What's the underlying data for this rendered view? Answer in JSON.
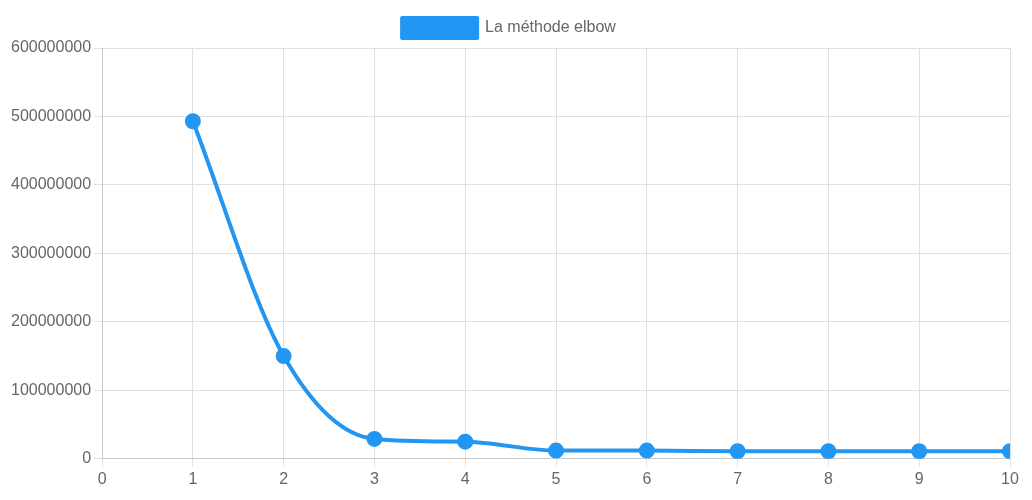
{
  "chart_data": {
    "type": "line",
    "x": [
      1,
      2,
      3,
      4,
      5,
      6,
      7,
      8,
      9,
      10
    ],
    "series": [
      {
        "name": "La méthode elbow",
        "color": "#2196f3",
        "values": [
          493000000,
          150000000,
          29000000,
          25000000,
          12000000,
          12000000,
          11000000,
          11000000,
          11000000,
          11000000
        ]
      }
    ],
    "xlim": [
      0,
      10
    ],
    "xticks": [
      0,
      1,
      2,
      3,
      4,
      5,
      6,
      7,
      8,
      9,
      10
    ],
    "ylim": [
      0,
      600000000
    ],
    "yticks": [
      0,
      100000000,
      200000000,
      300000000,
      400000000,
      500000000,
      600000000
    ],
    "grid": true,
    "legend": "top",
    "marker": "circle",
    "line_style": "solid"
  }
}
